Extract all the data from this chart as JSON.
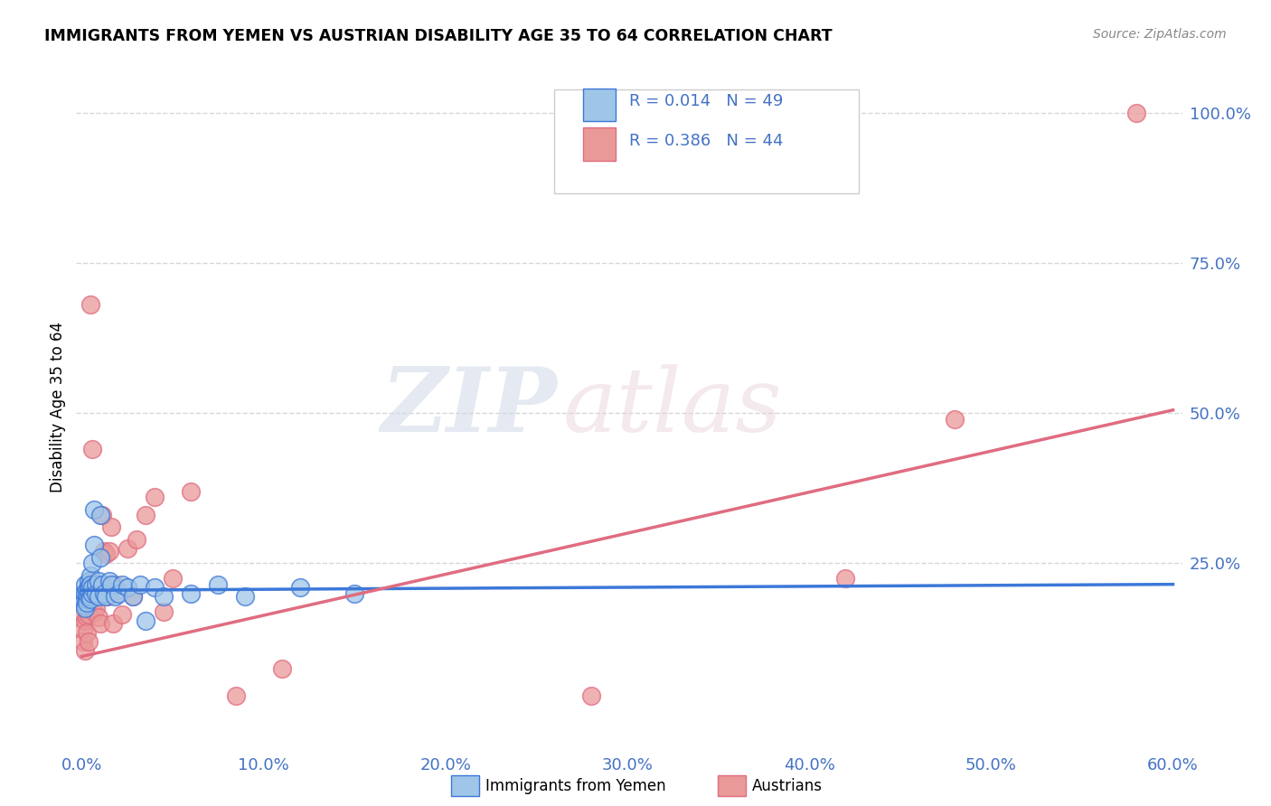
{
  "title": "IMMIGRANTS FROM YEMEN VS AUSTRIAN DISABILITY AGE 35 TO 64 CORRELATION CHART",
  "source": "Source: ZipAtlas.com",
  "ylabel": "Disability Age 35 to 64",
  "xlim": [
    0.0,
    0.6
  ],
  "ylim": [
    -0.06,
    1.08
  ],
  "ytick_labels": [
    "100.0%",
    "75.0%",
    "50.0%",
    "25.0%"
  ],
  "ytick_vals": [
    1.0,
    0.75,
    0.5,
    0.25
  ],
  "color_blue": "#9fc5e8",
  "color_pink": "#ea9999",
  "color_blue_dark": "#3c78d8",
  "color_pink_dark": "#e06c80",
  "color_axis": "#4472c4",
  "color_grid": "#cccccc",
  "blue_x": [
    0.001,
    0.001,
    0.001,
    0.002,
    0.002,
    0.002,
    0.002,
    0.003,
    0.003,
    0.003,
    0.003,
    0.004,
    0.004,
    0.004,
    0.004,
    0.005,
    0.005,
    0.005,
    0.005,
    0.006,
    0.006,
    0.006,
    0.007,
    0.007,
    0.008,
    0.008,
    0.009,
    0.009,
    0.01,
    0.01,
    0.011,
    0.012,
    0.013,
    0.015,
    0.016,
    0.018,
    0.02,
    0.022,
    0.025,
    0.028,
    0.032,
    0.035,
    0.04,
    0.045,
    0.06,
    0.075,
    0.09,
    0.12,
    0.15
  ],
  "blue_y": [
    0.195,
    0.2,
    0.185,
    0.2,
    0.18,
    0.175,
    0.215,
    0.19,
    0.205,
    0.195,
    0.185,
    0.22,
    0.195,
    0.21,
    0.205,
    0.23,
    0.215,
    0.195,
    0.19,
    0.2,
    0.21,
    0.25,
    0.34,
    0.28,
    0.215,
    0.2,
    0.22,
    0.195,
    0.33,
    0.26,
    0.215,
    0.2,
    0.195,
    0.22,
    0.215,
    0.195,
    0.2,
    0.215,
    0.21,
    0.195,
    0.215,
    0.155,
    0.21,
    0.195,
    0.2,
    0.215,
    0.195,
    0.21,
    0.2
  ],
  "pink_x": [
    0.001,
    0.001,
    0.001,
    0.002,
    0.002,
    0.002,
    0.003,
    0.003,
    0.003,
    0.004,
    0.004,
    0.005,
    0.005,
    0.005,
    0.006,
    0.007,
    0.007,
    0.008,
    0.009,
    0.01,
    0.011,
    0.012,
    0.013,
    0.014,
    0.015,
    0.016,
    0.017,
    0.018,
    0.02,
    0.022,
    0.025,
    0.028,
    0.03,
    0.035,
    0.04,
    0.045,
    0.05,
    0.06,
    0.085,
    0.11,
    0.28,
    0.42,
    0.48,
    0.58
  ],
  "pink_y": [
    0.165,
    0.14,
    0.12,
    0.195,
    0.155,
    0.105,
    0.16,
    0.135,
    0.2,
    0.165,
    0.12,
    0.22,
    0.195,
    0.68,
    0.44,
    0.21,
    0.17,
    0.175,
    0.16,
    0.15,
    0.33,
    0.27,
    0.265,
    0.195,
    0.27,
    0.31,
    0.15,
    0.215,
    0.205,
    0.165,
    0.275,
    0.195,
    0.29,
    0.33,
    0.36,
    0.17,
    0.225,
    0.37,
    0.03,
    0.075,
    0.03,
    0.225,
    0.49,
    1.0
  ],
  "blue_line_x": [
    0.0,
    0.6
  ],
  "blue_line_y": [
    0.205,
    0.215
  ],
  "pink_line_x": [
    0.0,
    0.6
  ],
  "pink_line_y": [
    0.095,
    0.505
  ],
  "watermark_zip": "ZIP",
  "watermark_atlas": "atlas",
  "background_color": "#ffffff"
}
